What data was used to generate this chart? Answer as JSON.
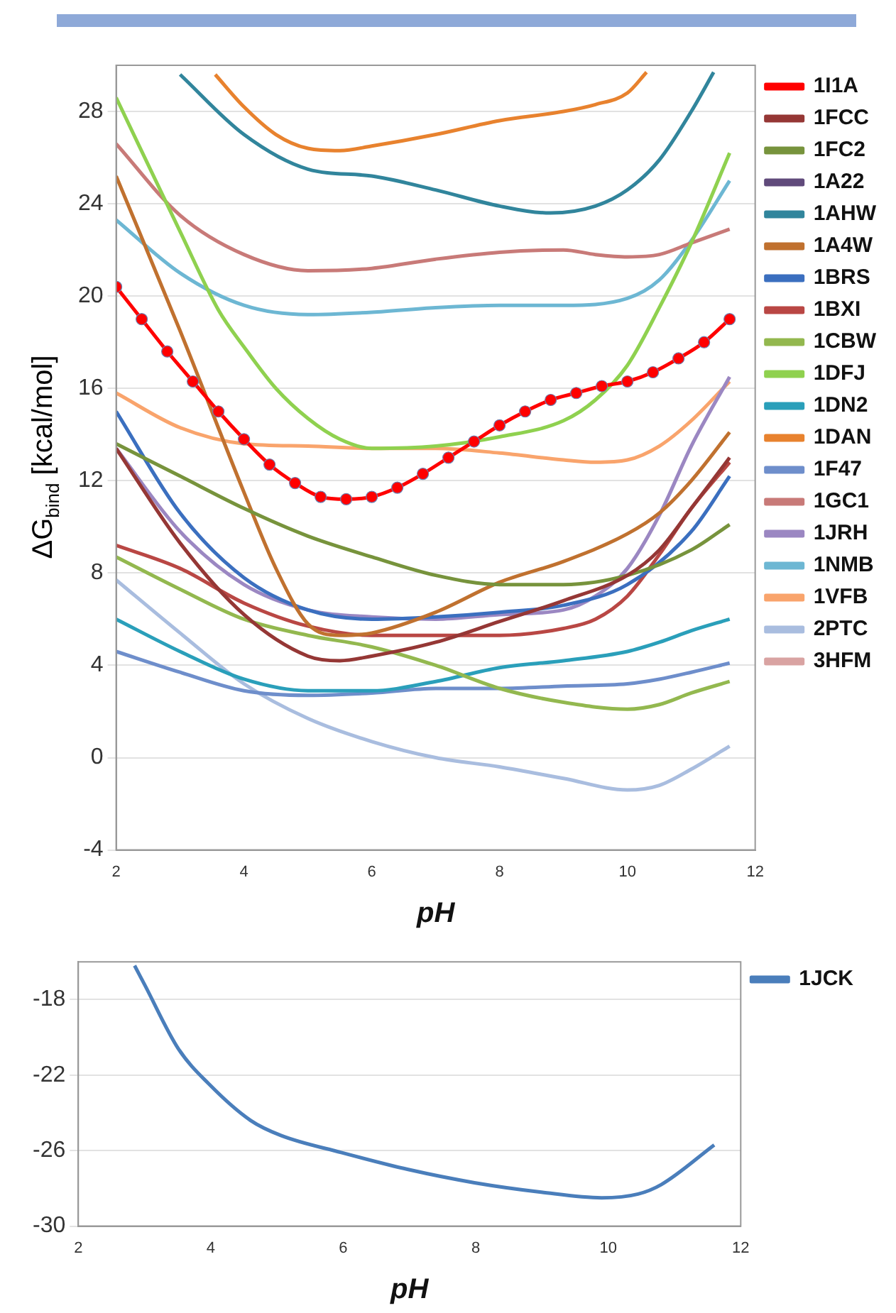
{
  "chart_data": [
    {
      "type": "line",
      "xlabel": "pH",
      "ylabel": "ΔG$_{bind}$ [kcal/mol]",
      "xlim": [
        2,
        12
      ],
      "xticks": [
        2,
        4,
        6,
        8,
        10,
        12
      ],
      "ylim": [
        -4,
        30
      ],
      "yticks": [
        -4,
        0,
        4,
        8,
        12,
        16,
        20,
        24,
        28
      ],
      "grid": "y",
      "legend": "right",
      "series": [
        {
          "name": "1I1A",
          "color": "#ff0000",
          "marker": "circle",
          "x": [
            2,
            2.4,
            2.8,
            3.2,
            3.6,
            4,
            4.4,
            4.8,
            5.2,
            5.6,
            6,
            6.4,
            6.8,
            7.2,
            7.6,
            8,
            8.4,
            8.8,
            9.2,
            9.6,
            10,
            10.4,
            10.8,
            11.2,
            11.6
          ],
          "values": [
            20.4,
            19.0,
            17.6,
            16.3,
            15.0,
            13.8,
            12.7,
            11.9,
            11.3,
            11.2,
            11.3,
            11.7,
            12.3,
            13.0,
            13.7,
            14.4,
            15.0,
            15.5,
            15.8,
            16.1,
            16.3,
            16.7,
            17.3,
            18.0,
            19.0
          ]
        },
        {
          "name": "1FCC",
          "color": "#953735",
          "x": [
            2,
            3,
            4,
            5,
            5.5,
            6,
            7,
            8,
            9,
            10,
            10.5,
            11,
            11.6
          ],
          "values": [
            13.4,
            9.3,
            6.2,
            4.4,
            4.2,
            4.4,
            5.0,
            5.9,
            6.8,
            7.9,
            9.0,
            10.8,
            13.0
          ]
        },
        {
          "name": "1FC2",
          "color": "#77933c",
          "x": [
            2,
            3,
            4,
            5,
            6,
            7,
            8,
            9,
            10,
            11,
            11.6
          ],
          "values": [
            13.6,
            12.2,
            10.8,
            9.6,
            8.7,
            7.9,
            7.5,
            7.5,
            7.9,
            9.0,
            10.1
          ]
        },
        {
          "name": "1A22",
          "color": "#604a7b"
        },
        {
          "name": "1AHW",
          "color": "#31859c",
          "x": [
            3.0,
            4,
            5,
            6,
            7,
            8,
            8.8,
            9.5,
            10,
            10.5,
            11,
            11.35
          ],
          "values": [
            29.6,
            27.0,
            25.5,
            25.2,
            24.6,
            23.9,
            23.6,
            23.9,
            24.6,
            25.9,
            28.0,
            29.7
          ]
        },
        {
          "name": "1A4W",
          "color": "#c0712f",
          "x": [
            2,
            3,
            4,
            4.5,
            5,
            5.5,
            6,
            7,
            8,
            9,
            10,
            10.5,
            11,
            11.6
          ],
          "values": [
            25.2,
            18.5,
            11.5,
            8.2,
            5.8,
            5.3,
            5.4,
            6.3,
            7.6,
            8.5,
            9.7,
            10.6,
            12.0,
            14.1
          ]
        },
        {
          "name": "1BRS",
          "color": "#3b6fbf",
          "x": [
            2,
            3,
            4,
            5,
            6,
            7,
            8,
            9,
            10,
            11,
            11.6
          ],
          "values": [
            15.0,
            10.6,
            7.8,
            6.4,
            6.0,
            6.1,
            6.3,
            6.6,
            7.5,
            9.8,
            12.2
          ]
        },
        {
          "name": "1BXI",
          "color": "#b94744",
          "x": [
            2,
            3,
            4,
            5,
            6,
            7,
            8,
            9,
            9.5,
            10,
            10.5,
            11,
            11.6
          ],
          "values": [
            9.2,
            8.2,
            6.7,
            5.7,
            5.3,
            5.3,
            5.3,
            5.6,
            6.0,
            7.0,
            8.8,
            10.8,
            12.8
          ]
        },
        {
          "name": "1CBW",
          "color": "#93b84f",
          "x": [
            2,
            3,
            4,
            5,
            6,
            7,
            8,
            9,
            10,
            10.5,
            11,
            11.6
          ],
          "values": [
            8.7,
            7.3,
            6.0,
            5.3,
            4.8,
            4.0,
            3.0,
            2.4,
            2.1,
            2.3,
            2.8,
            3.3
          ]
        },
        {
          "name": "1DFJ",
          "color": "#8fd14f",
          "x": [
            2,
            3,
            3.6,
            4,
            4.5,
            5,
            5.5,
            6,
            7,
            8,
            9,
            9.5,
            10,
            10.5,
            11,
            11.6
          ],
          "values": [
            28.6,
            22.8,
            19.4,
            17.8,
            16.0,
            14.7,
            13.8,
            13.4,
            13.5,
            13.9,
            14.6,
            15.5,
            17.0,
            19.5,
            22.3,
            26.2
          ]
        },
        {
          "name": "1DN2",
          "color": "#2a9fba",
          "x": [
            2,
            3,
            4,
            5,
            6,
            7,
            8,
            9,
            10,
            10.5,
            11,
            11.6
          ],
          "values": [
            6.0,
            4.6,
            3.4,
            2.9,
            2.9,
            3.3,
            3.9,
            4.2,
            4.6,
            5.0,
            5.5,
            6.0
          ]
        },
        {
          "name": "1DAN",
          "color": "#e8822e",
          "x": [
            3.55,
            4,
            4.5,
            5,
            5.5,
            6,
            7,
            8,
            9,
            9.5,
            10,
            10.3
          ],
          "values": [
            29.6,
            28.2,
            27.0,
            26.4,
            26.3,
            26.5,
            27.0,
            27.6,
            28.0,
            28.3,
            28.8,
            29.7
          ]
        },
        {
          "name": "1F47",
          "color": "#6e8ecb",
          "x": [
            2,
            3,
            4,
            5,
            6,
            7,
            8,
            9,
            10,
            10.5,
            11,
            11.6
          ],
          "values": [
            4.6,
            3.7,
            2.9,
            2.7,
            2.8,
            3.0,
            3.0,
            3.1,
            3.2,
            3.4,
            3.7,
            4.1
          ]
        },
        {
          "name": "1GC1",
          "color": "#c87a78",
          "x": [
            2,
            3,
            4,
            5,
            6,
            7,
            8,
            9,
            9.5,
            10,
            10.5,
            11,
            11.6
          ],
          "values": [
            26.6,
            23.5,
            21.8,
            21.1,
            21.2,
            21.6,
            21.9,
            22.0,
            21.8,
            21.7,
            21.8,
            22.3,
            22.9
          ]
        },
        {
          "name": "1JRH",
          "color": "#9b87c2",
          "x": [
            2,
            3,
            4,
            5,
            6,
            7,
            8,
            9,
            9.5,
            10,
            10.5,
            11,
            11.6
          ],
          "values": [
            13.4,
            9.8,
            7.5,
            6.4,
            6.1,
            6.0,
            6.2,
            6.4,
            7.0,
            8.2,
            10.5,
            13.5,
            16.5
          ]
        },
        {
          "name": "1NMB",
          "color": "#6db7d3",
          "x": [
            2,
            3,
            4,
            5,
            6,
            7,
            8,
            9,
            10,
            10.5,
            11,
            11.6
          ],
          "values": [
            23.3,
            21.0,
            19.6,
            19.2,
            19.3,
            19.5,
            19.6,
            19.6,
            19.9,
            20.7,
            22.4,
            25.0
          ]
        },
        {
          "name": "1VFB",
          "color": "#f9a46c",
          "x": [
            2,
            3,
            4,
            5,
            6,
            7,
            8,
            9,
            9.5,
            10,
            10.5,
            11,
            11.6
          ],
          "values": [
            15.8,
            14.3,
            13.6,
            13.5,
            13.4,
            13.4,
            13.2,
            12.9,
            12.8,
            12.9,
            13.5,
            14.6,
            16.3
          ]
        },
        {
          "name": "2PTC",
          "color": "#a9bddf",
          "x": [
            2,
            3,
            4,
            5,
            6,
            7,
            8,
            9,
            10,
            10.5,
            11,
            11.6
          ],
          "values": [
            7.7,
            5.4,
            3.2,
            1.7,
            0.7,
            0.0,
            -0.4,
            -0.9,
            -1.4,
            -1.2,
            -0.5,
            0.5
          ]
        },
        {
          "name": "3HFM",
          "color": "#d9a3a2"
        }
      ]
    },
    {
      "type": "line",
      "xlabel": "pH",
      "xlim": [
        2,
        12
      ],
      "xticks": [
        2,
        4,
        6,
        8,
        10,
        12
      ],
      "ylim": [
        -30,
        -16
      ],
      "yticks": [
        -30,
        -26,
        -22,
        -18
      ],
      "grid": "y",
      "legend": "right",
      "series": [
        {
          "name": "1JCK",
          "color": "#4a7ebb",
          "x": [
            2.85,
            3,
            3.51,
            3.98,
            4.6,
            5.06,
            5.97,
            6.98,
            7.98,
            8.99,
            9.9,
            10.45,
            10.8,
            11.6
          ],
          "values": [
            -16.2,
            -17.2,
            -20.6,
            -22.5,
            -24.4,
            -25.2,
            -26.1,
            -27.0,
            -27.7,
            -28.2,
            -28.5,
            -28.3,
            -27.8,
            -25.7
          ]
        }
      ]
    }
  ]
}
